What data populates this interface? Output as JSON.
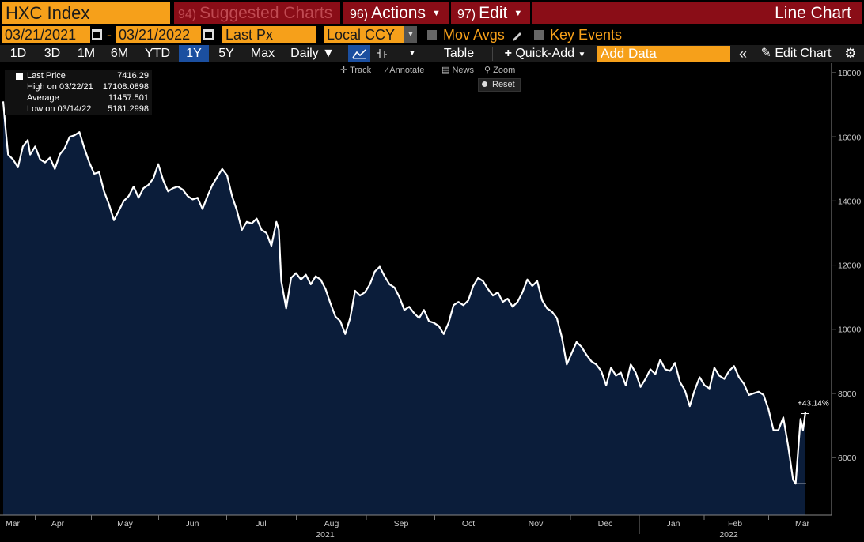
{
  "header": {
    "ticker": "HXC Index",
    "suggested": {
      "num": "94)",
      "label": "Suggested Charts"
    },
    "actions": {
      "num": "96)",
      "label": "Actions"
    },
    "edit": {
      "num": "97)",
      "label": "Edit"
    },
    "title": "Line Chart"
  },
  "controls": {
    "start_date": "03/21/2021",
    "dash": "-",
    "end_date": "03/21/2022",
    "field": "Last Px",
    "currency": "Local CCY",
    "mov_avgs": "Mov Avgs",
    "key_events": "Key Events"
  },
  "toolbar": {
    "ranges": [
      "1D",
      "3D",
      "1M",
      "6M",
      "YTD",
      "1Y",
      "5Y",
      "Max"
    ],
    "selected_range": "1Y",
    "frequency": "Daily",
    "table": "Table",
    "quick_add": "Quick-Add",
    "add_data_placeholder": "Add Data",
    "edit_chart": "Edit Chart"
  },
  "chart_tools": [
    "Track",
    "Annotate",
    "News",
    "Zoom"
  ],
  "reset_label": "Reset",
  "legend": [
    {
      "name": "Last Price",
      "value": "7416.29"
    },
    {
      "name": "High on 03/22/21",
      "value": "17108.0898"
    },
    {
      "name": "Average",
      "value": "11457.501"
    },
    {
      "name": "Low on 03/14/22",
      "value": "5181.2998"
    }
  ],
  "colors": {
    "line": "#ffffff",
    "fill": "#0b1d3a",
    "accent": "#f6a01a",
    "header_red": "#8a0d17",
    "selected": "#1b4fa0"
  },
  "chart_data": {
    "type": "area",
    "series_name": "Last Price",
    "change_label": "+43.14%",
    "y_ticks": [
      6000,
      8000,
      10000,
      12000,
      14000,
      16000,
      18000
    ],
    "y_range": [
      4200,
      18200
    ],
    "month_labels": [
      "Mar",
      "Apr",
      "May",
      "Jun",
      "Jul",
      "Aug",
      "Sep",
      "Oct",
      "Nov",
      "Dec",
      "Jan",
      "Feb",
      "Mar"
    ],
    "year_labels": [
      {
        "label": "2021",
        "month_index": 5
      },
      {
        "label": "2022",
        "month_index": 11
      }
    ],
    "x_dates": [
      "2021-03-22",
      "2021-04-01",
      "2021-04-15",
      "2021-05-01",
      "2021-05-15",
      "2021-06-01",
      "2021-06-15",
      "2021-07-01",
      "2021-07-15",
      "2021-08-01",
      "2021-08-15",
      "2021-09-01",
      "2021-09-15",
      "2021-10-01",
      "2021-10-15",
      "2021-11-01",
      "2021-11-15",
      "2021-12-01",
      "2021-12-15",
      "2022-01-01",
      "2022-01-15",
      "2022-02-01",
      "2022-02-15",
      "2022-03-01",
      "2022-03-14",
      "2022-03-21"
    ],
    "values": [
      [
        0,
        17108
      ],
      [
        2,
        16250
      ],
      [
        4,
        15450
      ],
      [
        8,
        15300
      ],
      [
        12,
        15050
      ],
      [
        16,
        15700
      ],
      [
        20,
        15900
      ],
      [
        22,
        15450
      ],
      [
        26,
        15700
      ],
      [
        30,
        15300
      ],
      [
        34,
        15200
      ],
      [
        38,
        15350
      ],
      [
        42,
        15000
      ],
      [
        46,
        15450
      ],
      [
        50,
        15650
      ],
      [
        54,
        16000
      ],
      [
        58,
        16050
      ],
      [
        62,
        16150
      ],
      [
        66,
        15650
      ],
      [
        70,
        15200
      ],
      [
        74,
        14850
      ],
      [
        78,
        14900
      ],
      [
        82,
        14300
      ],
      [
        86,
        13900
      ],
      [
        90,
        13400
      ],
      [
        94,
        13700
      ],
      [
        98,
        14000
      ],
      [
        102,
        14150
      ],
      [
        106,
        14450
      ],
      [
        110,
        14100
      ],
      [
        114,
        14400
      ],
      [
        118,
        14500
      ],
      [
        122,
        14700
      ],
      [
        126,
        15150
      ],
      [
        130,
        14650
      ],
      [
        134,
        14300
      ],
      [
        138,
        14400
      ],
      [
        142,
        14450
      ],
      [
        146,
        14350
      ],
      [
        150,
        14150
      ],
      [
        154,
        14050
      ],
      [
        158,
        14100
      ],
      [
        162,
        13750
      ],
      [
        166,
        14150
      ],
      [
        170,
        14500
      ],
      [
        174,
        14750
      ],
      [
        178,
        15000
      ],
      [
        182,
        14800
      ],
      [
        186,
        14150
      ],
      [
        190,
        13700
      ],
      [
        194,
        13100
      ],
      [
        198,
        13350
      ],
      [
        202,
        13300
      ],
      [
        206,
        13450
      ],
      [
        210,
        13100
      ],
      [
        214,
        13000
      ],
      [
        218,
        12600
      ],
      [
        222,
        13350
      ],
      [
        224,
        13100
      ],
      [
        226,
        11500
      ],
      [
        230,
        10650
      ],
      [
        234,
        11600
      ],
      [
        238,
        11750
      ],
      [
        242,
        11550
      ],
      [
        246,
        11700
      ],
      [
        250,
        11400
      ],
      [
        254,
        11650
      ],
      [
        258,
        11550
      ],
      [
        262,
        11250
      ],
      [
        266,
        10800
      ],
      [
        270,
        10400
      ],
      [
        274,
        10250
      ],
      [
        278,
        9850
      ],
      [
        282,
        10350
      ],
      [
        286,
        11200
      ],
      [
        290,
        11050
      ],
      [
        294,
        11150
      ],
      [
        298,
        11400
      ],
      [
        302,
        11800
      ],
      [
        306,
        11950
      ],
      [
        310,
        11650
      ],
      [
        314,
        11400
      ],
      [
        318,
        11300
      ],
      [
        322,
        11000
      ],
      [
        326,
        10600
      ],
      [
        330,
        10700
      ],
      [
        334,
        10500
      ],
      [
        338,
        10350
      ],
      [
        342,
        10600
      ],
      [
        346,
        10250
      ],
      [
        350,
        10200
      ],
      [
        354,
        10100
      ],
      [
        358,
        9850
      ],
      [
        362,
        10200
      ],
      [
        366,
        10750
      ],
      [
        370,
        10850
      ],
      [
        374,
        10750
      ],
      [
        378,
        10900
      ],
      [
        382,
        11350
      ],
      [
        386,
        11600
      ],
      [
        390,
        11500
      ],
      [
        394,
        11250
      ],
      [
        398,
        11050
      ],
      [
        402,
        11150
      ],
      [
        406,
        10850
      ],
      [
        410,
        10950
      ],
      [
        414,
        10700
      ],
      [
        418,
        10850
      ],
      [
        422,
        11150
      ],
      [
        426,
        11550
      ],
      [
        430,
        11350
      ],
      [
        434,
        11500
      ],
      [
        438,
        10900
      ],
      [
        442,
        10650
      ],
      [
        446,
        10550
      ],
      [
        450,
        10350
      ],
      [
        454,
        9750
      ],
      [
        458,
        8900
      ],
      [
        462,
        9250
      ],
      [
        466,
        9600
      ],
      [
        470,
        9450
      ],
      [
        474,
        9200
      ],
      [
        478,
        9000
      ],
      [
        482,
        8900
      ],
      [
        486,
        8700
      ],
      [
        490,
        8250
      ],
      [
        494,
        8800
      ],
      [
        498,
        8550
      ],
      [
        502,
        8650
      ],
      [
        506,
        8250
      ],
      [
        510,
        8900
      ],
      [
        514,
        8650
      ],
      [
        518,
        8200
      ],
      [
        522,
        8450
      ],
      [
        526,
        8750
      ],
      [
        530,
        8600
      ],
      [
        534,
        9050
      ],
      [
        538,
        8750
      ],
      [
        542,
        8700
      ],
      [
        546,
        8950
      ],
      [
        550,
        8350
      ],
      [
        554,
        8100
      ],
      [
        558,
        7600
      ],
      [
        562,
        8100
      ],
      [
        566,
        8500
      ],
      [
        570,
        8250
      ],
      [
        574,
        8150
      ],
      [
        578,
        8800
      ],
      [
        582,
        8550
      ],
      [
        586,
        8450
      ],
      [
        590,
        8700
      ],
      [
        594,
        8850
      ],
      [
        598,
        8500
      ],
      [
        602,
        8300
      ],
      [
        606,
        7950
      ],
      [
        610,
        8000
      ],
      [
        614,
        8050
      ],
      [
        618,
        7950
      ],
      [
        622,
        7500
      ],
      [
        626,
        6850
      ],
      [
        630,
        6850
      ],
      [
        634,
        7250
      ],
      [
        638,
        6350
      ],
      [
        642,
        5300
      ],
      [
        644,
        5181
      ],
      [
        648,
        7200
      ],
      [
        650,
        6850
      ],
      [
        652,
        7416
      ]
    ],
    "x_index_max": 652
  }
}
